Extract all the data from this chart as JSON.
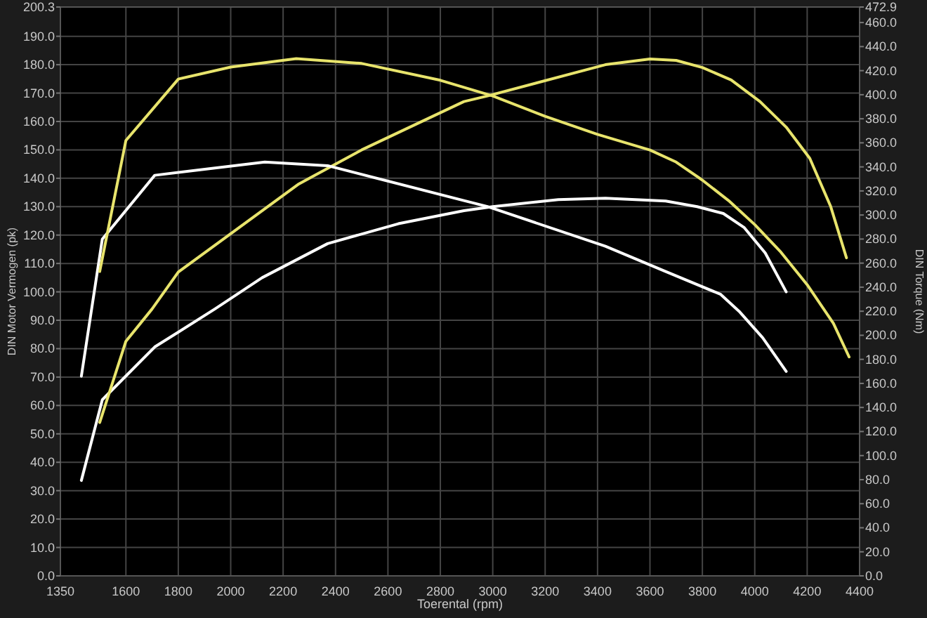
{
  "chart_data": {
    "type": "line",
    "xlabel": "Toerental (rpm)",
    "ylabel": "DIN Motor Vermogen (pk)",
    "y2label": "DIN Torque (Nm)",
    "grid": true,
    "marker": "none",
    "line_style": "solid",
    "xlim": [
      1350,
      4400
    ],
    "xticks": [
      1350,
      1600,
      1800,
      2000,
      2200,
      2400,
      2600,
      2800,
      3000,
      3200,
      3400,
      3600,
      3800,
      4000,
      4200,
      4400
    ],
    "ylim": [
      0,
      200.3
    ],
    "yticks": [
      {
        "value": 0,
        "label": "0.0"
      },
      {
        "value": 10,
        "label": "10.0"
      },
      {
        "value": 20,
        "label": "20.0"
      },
      {
        "value": 30,
        "label": "30.0"
      },
      {
        "value": 40,
        "label": "40.0"
      },
      {
        "value": 50,
        "label": "50.0"
      },
      {
        "value": 60,
        "label": "60.0"
      },
      {
        "value": 70,
        "label": "70.0"
      },
      {
        "value": 80,
        "label": "80.0"
      },
      {
        "value": 90,
        "label": "90.0"
      },
      {
        "value": 100,
        "label": "100.0"
      },
      {
        "value": 110,
        "label": "110.0"
      },
      {
        "value": 120,
        "label": "120.0"
      },
      {
        "value": 130,
        "label": "130.0"
      },
      {
        "value": 140,
        "label": "140.0"
      },
      {
        "value": 150,
        "label": "150.0"
      },
      {
        "value": 160,
        "label": "160.0"
      },
      {
        "value": 170,
        "label": "170.0"
      },
      {
        "value": 180,
        "label": "180.0"
      },
      {
        "value": 190,
        "label": "190.0"
      },
      200.3
    ],
    "y2lim": [
      0,
      472.9
    ],
    "y2ticks": [
      {
        "value": 0,
        "label": "0.0"
      },
      {
        "value": 20,
        "label": "20.0"
      },
      {
        "value": 40,
        "label": "40.0"
      },
      {
        "value": 60,
        "label": "60.0"
      },
      {
        "value": 80,
        "label": "80.0"
      },
      {
        "value": 100,
        "label": "100.0"
      },
      {
        "value": 120,
        "label": "120.0"
      },
      {
        "value": 140,
        "label": "140.0"
      },
      {
        "value": 160,
        "label": "160.0"
      },
      {
        "value": 180,
        "label": "180.0"
      },
      {
        "value": 200,
        "label": "200.0"
      },
      {
        "value": 220,
        "label": "220.0"
      },
      {
        "value": 240,
        "label": "240.0"
      },
      {
        "value": 260,
        "label": "260.0"
      },
      {
        "value": 280,
        "label": "280.0"
      },
      {
        "value": 300,
        "label": "300.0"
      },
      {
        "value": 320,
        "label": "320.0"
      },
      {
        "value": 340,
        "label": "340.0"
      },
      {
        "value": 360,
        "label": "360.0"
      },
      {
        "value": 380,
        "label": "380.0"
      },
      {
        "value": 400,
        "label": "400.0"
      },
      {
        "value": 420,
        "label": "420.0"
      },
      {
        "value": 440,
        "label": "440.0"
      },
      {
        "value": 460,
        "label": "460.0"
      },
      472.9
    ],
    "series": [
      {
        "color": "#ffffff",
        "x": [
          1430,
          1510,
          1710,
          1940,
          2120,
          2370,
          2640,
          2890,
          3000,
          3250,
          3430,
          3660,
          3780,
          3880,
          3960,
          4040,
          4120
        ],
        "values": [
          33.6,
          62,
          80.6,
          94,
          105,
          117,
          124,
          128.6,
          130,
          132.5,
          133,
          132,
          130,
          127.6,
          122.6,
          113.7,
          100
        ]
      },
      {
        "color": "#e8e46c",
        "x": [
          1500,
          1600,
          1700,
          1800,
          2260,
          2500,
          2890,
          2980,
          3430,
          3600,
          3700,
          3800,
          3910,
          4020,
          4120,
          4210,
          4290,
          4350
        ],
        "values": [
          54,
          82.6,
          94,
          107,
          138,
          150,
          167,
          169,
          180,
          182,
          181.5,
          179,
          174.6,
          167,
          158,
          147,
          130,
          112
        ]
      },
      {
        "color": "#ffffff",
        "axis": "y2",
        "x": [
          1430,
          1510,
          1710,
          2130,
          2370,
          2890,
          2980,
          3430,
          3660,
          3870,
          3940,
          4030,
          4120
        ],
        "values": [
          166,
          280,
          333,
          344,
          341,
          312,
          307,
          274,
          253,
          234,
          220,
          198,
          170
        ]
      },
      {
        "color": "#e8e46c",
        "axis": "y2",
        "x": [
          1500,
          1600,
          1800,
          2000,
          2250,
          2500,
          2800,
          3000,
          3200,
          3400,
          3600,
          3700,
          3800,
          3900,
          4000,
          4100,
          4200,
          4300,
          4360
        ],
        "values": [
          253,
          362,
          413,
          423,
          430,
          426,
          412,
          399,
          382,
          367,
          354,
          344,
          329,
          312,
          292,
          269,
          242,
          210,
          182
        ]
      }
    ]
  }
}
